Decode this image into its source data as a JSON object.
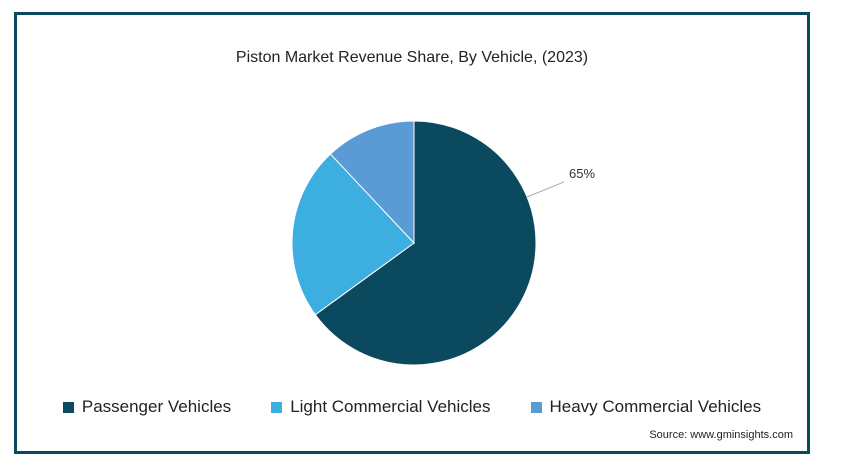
{
  "chart_data": {
    "type": "pie",
    "title": "Piston Market Revenue Share, By Vehicle,  (2023)",
    "categories": [
      "Passenger Vehicles",
      "Light Commercial Vehicles",
      "Heavy Commercial Vehicles"
    ],
    "values": [
      65,
      23,
      12
    ],
    "colors": [
      "#0b4a5e",
      "#3caee0",
      "#5b9bd5"
    ],
    "data_labels": [
      "65%",
      "",
      ""
    ],
    "legend_position": "bottom"
  },
  "source": "Source: www.gminsights.com"
}
